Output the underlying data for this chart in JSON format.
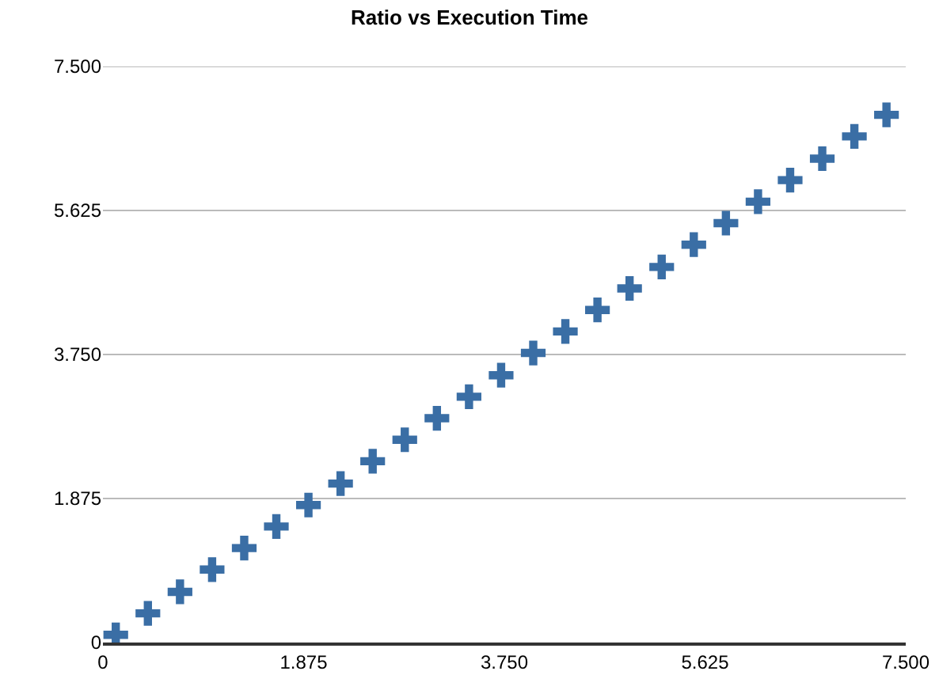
{
  "chart_data": {
    "type": "scatter",
    "title": "Ratio vs Execution Time",
    "x": [
      0.12,
      0.42,
      0.72,
      1.02,
      1.32,
      1.62,
      1.92,
      2.22,
      2.52,
      2.82,
      3.12,
      3.42,
      3.72,
      4.02,
      4.32,
      4.62,
      4.92,
      5.22,
      5.52,
      5.82,
      6.12,
      6.42,
      6.72,
      7.02,
      7.32
    ],
    "series": [
      {
        "color": "#3a6ea5",
        "values": [
          0.1,
          0.38,
          0.66,
          0.95,
          1.23,
          1.51,
          1.79,
          2.07,
          2.36,
          2.64,
          2.92,
          3.2,
          3.48,
          3.77,
          4.05,
          4.33,
          4.61,
          4.89,
          5.18,
          5.46,
          5.74,
          6.02,
          6.3,
          6.59,
          6.87
        ]
      }
    ],
    "xlim": [
      0,
      7.5
    ],
    "xticks": [
      {
        "value": 0,
        "label": "0"
      },
      {
        "value": 1.875,
        "label": "1.875"
      },
      {
        "value": 3.75,
        "label": "3.750"
      },
      {
        "value": 5.625,
        "label": "5.625"
      },
      {
        "value": 7.5,
        "label": "7.500"
      }
    ],
    "ylim": [
      0,
      7.5
    ],
    "yticks": [
      {
        "value": 0,
        "label": "0"
      },
      {
        "value": 1.875,
        "label": "1.875"
      },
      {
        "value": 3.75,
        "label": "3.750"
      },
      {
        "value": 5.625,
        "label": "5.625"
      },
      {
        "value": 7.5,
        "label": "7.500"
      }
    ],
    "grid": "y",
    "marker": "cross"
  }
}
